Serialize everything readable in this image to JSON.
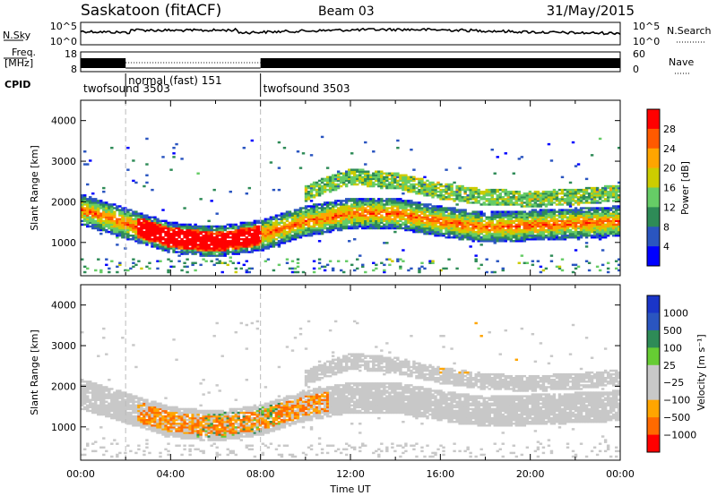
{
  "header": {
    "station": "Saskatoon (fitACF)",
    "beam": "Beam 03",
    "date": "31/May/2015"
  },
  "top_panels": {
    "nsky_label": "N.Sky",
    "nsearch_label": "N.Search",
    "nsky_ticks": [
      "10^5",
      "10^0"
    ],
    "nsearch_ticks": [
      "10^5",
      "10^0"
    ],
    "freq_label_1": "Freq.",
    "freq_label_2": "[MHz]",
    "freq_ticks": [
      "18",
      "8"
    ],
    "nave_label": "Nave",
    "nave_ticks": [
      "60",
      "0"
    ],
    "cpid_label": "CPID",
    "cpid_segments": [
      {
        "label": "twofsound 3503",
        "start_h": 0,
        "end_h": 2
      },
      {
        "label": "normal (fast) 151",
        "start_h": 2,
        "end_h": 8
      },
      {
        "label": "twofsound 3503",
        "start_h": 8,
        "end_h": 24
      }
    ]
  },
  "colors": {
    "power": [
      "#0000ff",
      "#2a55c0",
      "#2e8b57",
      "#66cc66",
      "#cccc00",
      "#ffa500",
      "#ff5a00",
      "#ff0000"
    ],
    "velocity": [
      "#ff0000",
      "#ff6a00",
      "#ffa500",
      "#c8c8c8",
      "#c8c8c8",
      "#66cc33",
      "#2e8b57",
      "#2a55c0",
      "#1a35c8"
    ]
  },
  "chart_data": [
    {
      "type": "heatmap",
      "title": "",
      "xlabel": "Time UT",
      "ylabel": "Slant Range [km]",
      "xlim": [
        0,
        24
      ],
      "ylim": [
        180,
        4500
      ],
      "x_ticks": [
        "00:00",
        "04:00",
        "08:00",
        "12:00",
        "16:00",
        "20:00",
        "00:00"
      ],
      "y_ticks": [
        "1000",
        "2000",
        "3000",
        "4000"
      ],
      "y_tick_values": [
        1000,
        2000,
        3000,
        4000
      ],
      "colorbar_label": "Power [dB]",
      "colorbar_ticks": [
        "4",
        "8",
        "12",
        "16",
        "20",
        "24",
        "28"
      ],
      "mode_change_lines_h": [
        2,
        8
      ],
      "main_echo_band_center_km": [
        {
          "t": 0,
          "km": 1800
        },
        {
          "t": 2,
          "km": 1450
        },
        {
          "t": 4,
          "km": 1100
        },
        {
          "t": 6,
          "km": 1000
        },
        {
          "t": 8,
          "km": 1150
        },
        {
          "t": 10,
          "km": 1500
        },
        {
          "t": 12,
          "km": 1700
        },
        {
          "t": 14,
          "km": 1700
        },
        {
          "t": 16,
          "km": 1500
        },
        {
          "t": 18,
          "km": 1350
        },
        {
          "t": 20,
          "km": 1400
        },
        {
          "t": 22,
          "km": 1450
        },
        {
          "t": 24,
          "km": 1500
        }
      ],
      "upper_echo_band_center_km": [
        {
          "t": 10,
          "km": 2200
        },
        {
          "t": 12,
          "km": 2600
        },
        {
          "t": 14,
          "km": 2500
        },
        {
          "t": 16,
          "km": 2250
        },
        {
          "t": 18,
          "km": 2100
        },
        {
          "t": 20,
          "km": 2050
        },
        {
          "t": 22,
          "km": 2100
        },
        {
          "t": 24,
          "km": 2200
        }
      ]
    },
    {
      "type": "heatmap",
      "title": "",
      "xlabel": "Time UT",
      "ylabel": "Slant Range [km]",
      "xlim": [
        0,
        24
      ],
      "ylim": [
        180,
        4500
      ],
      "x_ticks": [
        "00:00",
        "04:00",
        "08:00",
        "12:00",
        "16:00",
        "20:00",
        "00:00"
      ],
      "y_ticks": [
        "1000",
        "2000",
        "3000",
        "4000"
      ],
      "y_tick_values": [
        1000,
        2000,
        3000,
        4000
      ],
      "colorbar_label": "Velocity [m s⁻¹]",
      "colorbar_ticks": [
        "1000",
        "500",
        "100",
        "25",
        "−25",
        "−100",
        "−500",
        "−1000"
      ],
      "mode_change_lines_h": [
        2,
        8
      ]
    }
  ]
}
